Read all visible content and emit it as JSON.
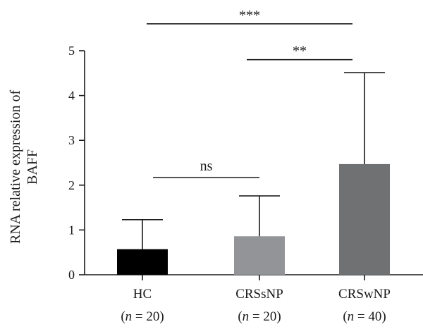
{
  "chart_data": {
    "type": "bar",
    "categories": [
      "HC",
      "CRSsNP",
      "CRSwNP"
    ],
    "group_sizes": [
      "20",
      "20",
      "40"
    ],
    "n_symbol": "n",
    "values": [
      0.57,
      0.86,
      2.47
    ],
    "error_upper": [
      1.23,
      1.76,
      4.51
    ],
    "bar_colors": [
      "#000000",
      "#929497",
      "#6f7173"
    ],
    "ylabel_lines": [
      "RNA relative expression of",
      "BAFF"
    ],
    "xlabel": "",
    "title": "",
    "ylim": [
      0,
      5
    ],
    "yticks": [
      0,
      1,
      2,
      3,
      4,
      5
    ],
    "grid": false,
    "legend": "none",
    "significance": [
      {
        "from": 0,
        "to": 1,
        "label": "ns",
        "y": 2.17
      },
      {
        "from": 1,
        "to": 2,
        "label": "**",
        "y": 4.8
      },
      {
        "from": 0,
        "to": 2,
        "label": "***",
        "y": 5.6
      }
    ]
  }
}
